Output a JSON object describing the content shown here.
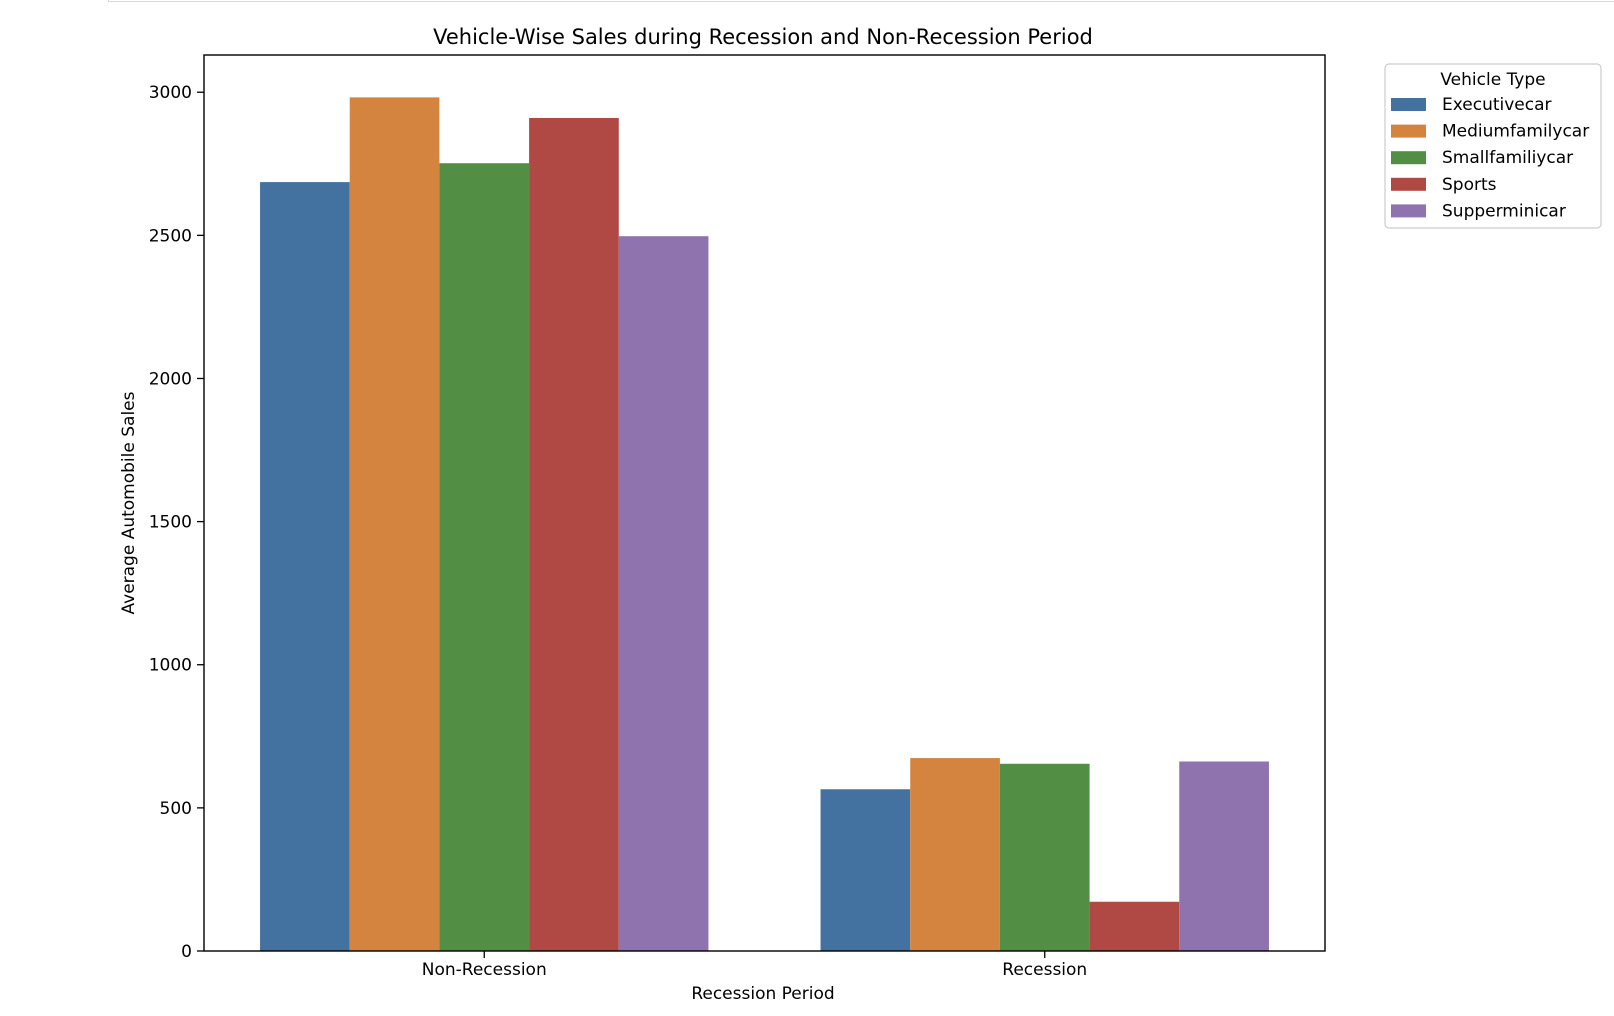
{
  "chart_data": {
    "type": "bar",
    "title": "Vehicle-Wise Sales during Recession and Non-Recession Period",
    "xlabel": "Recession Period",
    "ylabel": "Average Automobile Sales",
    "categories": [
      "Non-Recession",
      "Recession"
    ],
    "ylim": [
      0,
      3130
    ],
    "yticks": [
      0,
      500,
      1000,
      1500,
      2000,
      2500,
      3000
    ],
    "grid": false,
    "legend": {
      "title": "Vehicle Type",
      "placement": "outside-top-right"
    },
    "series": [
      {
        "name": "Executivecar",
        "color": "#4472a0",
        "values": [
          2686,
          565
        ]
      },
      {
        "name": "Mediumfamilycar",
        "color": "#d4843f",
        "values": [
          2982,
          674
        ]
      },
      {
        "name": "Smallfamiliycar",
        "color": "#528f45",
        "values": [
          2752,
          654
        ]
      },
      {
        "name": "Sports",
        "color": "#b04843",
        "values": [
          2910,
          172
        ]
      },
      {
        "name": "Supperminicar",
        "color": "#8e73ae",
        "values": [
          2497,
          662
        ]
      }
    ]
  }
}
